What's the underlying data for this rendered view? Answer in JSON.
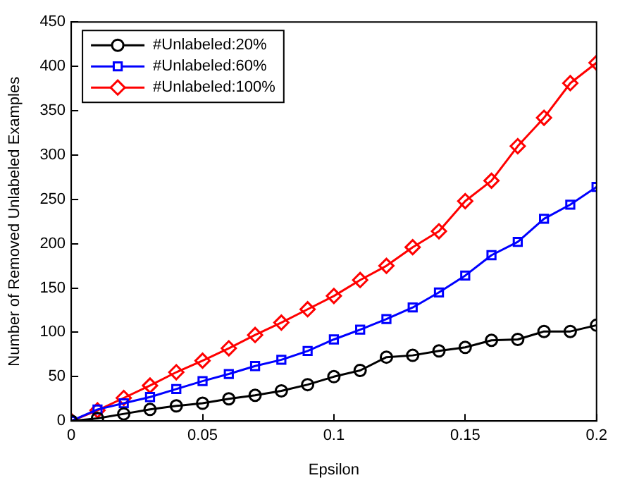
{
  "chart_data": {
    "type": "line",
    "xlabel": "Epsilon",
    "ylabel": "Number of Removed Unlabeled Examples",
    "x": [
      0,
      0.01,
      0.02,
      0.03,
      0.04,
      0.05,
      0.06,
      0.07,
      0.08,
      0.09,
      0.1,
      0.11,
      0.12,
      0.13,
      0.14,
      0.15,
      0.16,
      0.17,
      0.18,
      0.19,
      0.2
    ],
    "xlim": [
      0,
      0.2
    ],
    "xticks": [
      0,
      0.05,
      0.1,
      0.15,
      0.2
    ],
    "ylim": [
      0,
      450
    ],
    "yticks": [
      0,
      50,
      100,
      150,
      200,
      250,
      300,
      350,
      400,
      450
    ],
    "grid": false,
    "legend": "top left",
    "line_style": "solid",
    "series": [
      {
        "name": "#Unlabeled:20%",
        "color": "#000000",
        "marker": "circle",
        "values": [
          0,
          3,
          8,
          13,
          17,
          20,
          25,
          29,
          34,
          41,
          50,
          57,
          72,
          74,
          79,
          83,
          91,
          92,
          101,
          101,
          108
        ]
      },
      {
        "name": "#Unlabeled:60%",
        "color": "#0000ff",
        "marker": "square",
        "values": [
          0,
          13,
          20,
          27,
          36,
          45,
          53,
          62,
          69,
          79,
          92,
          103,
          115,
          128,
          145,
          164,
          187,
          202,
          228,
          244,
          264
        ]
      },
      {
        "name": "#Unlabeled:100%",
        "color": "#ff0000",
        "marker": "diamond",
        "values": [
          0,
          12,
          26,
          40,
          55,
          68,
          82,
          97,
          111,
          126,
          141,
          159,
          175,
          196,
          214,
          248,
          271,
          310,
          342,
          381,
          404
        ]
      }
    ]
  }
}
